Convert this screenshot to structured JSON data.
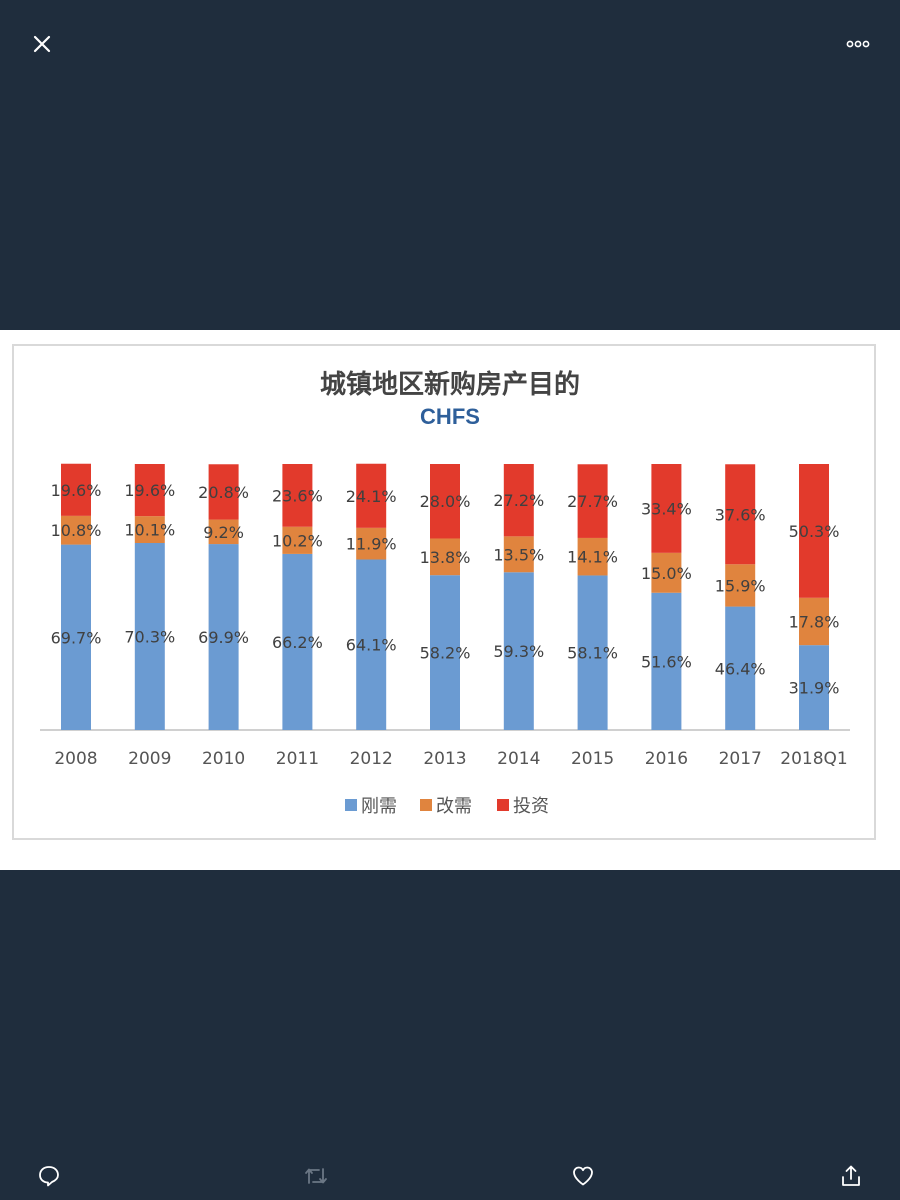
{
  "colors": {
    "background": "#1f2d3d",
    "icon": "#ffffff",
    "icon_dim": "#6b7785",
    "series": [
      "#6b9bd2",
      "#e0843e",
      "#e23a2c"
    ]
  },
  "icons": {
    "close": "close-icon",
    "more": "more-icon",
    "reply": "reply-icon",
    "retweet": "retweet-icon",
    "like": "heart-icon",
    "share": "share-icon"
  },
  "chart_data": {
    "type": "bar",
    "stacked": true,
    "title": "城镇地区新购房产目的",
    "subtitle": "CHFS",
    "categories": [
      "2008",
      "2009",
      "2010",
      "2011",
      "2012",
      "2013",
      "2014",
      "2015",
      "2016",
      "2017",
      "2018Q1"
    ],
    "series": [
      {
        "name": "刚需",
        "values": [
          69.7,
          70.3,
          69.9,
          66.2,
          64.1,
          58.2,
          59.3,
          58.1,
          51.6,
          46.4,
          31.9
        ]
      },
      {
        "name": "改需",
        "values": [
          10.8,
          10.1,
          9.2,
          10.2,
          11.9,
          13.8,
          13.5,
          14.1,
          15.0,
          15.9,
          17.8
        ]
      },
      {
        "name": "投资",
        "values": [
          19.6,
          19.6,
          20.8,
          23.6,
          24.1,
          28.0,
          27.2,
          27.7,
          33.4,
          37.6,
          50.3
        ]
      }
    ],
    "data_labels": [
      [
        "69.7%",
        "70.3%",
        "69.9%",
        "66.2%",
        "64.1%",
        "58.2%",
        "59.3%",
        "58.1%",
        "51.6%",
        "46.4%",
        "31.9%"
      ],
      [
        "10.8%",
        "10.1%",
        "9.2%",
        "10.2%",
        "11.9%",
        "13.8%",
        "13.5%",
        "14.1%",
        "15.0%",
        "15.9%",
        "17.8%"
      ],
      [
        "19.6%",
        "19.6%",
        "20.8%",
        "23.6%",
        "24.1%",
        "28.0%",
        "27.2%",
        "27.7%",
        "33.4%",
        "37.6%",
        "50.3%"
      ]
    ],
    "ylim": [
      0,
      100
    ],
    "grid": false,
    "legend_position": "bottom"
  }
}
